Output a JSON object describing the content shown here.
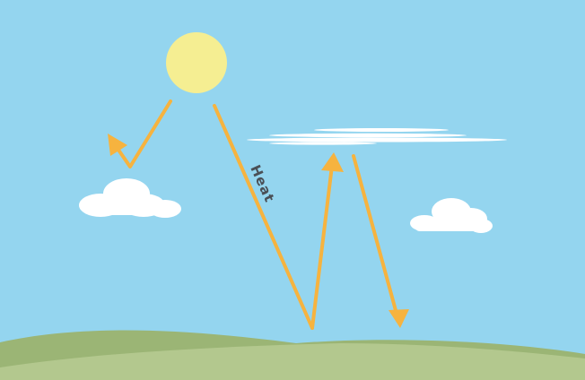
{
  "labels": {
    "heat": "Heat"
  },
  "colors": {
    "sky": "#94d5ef",
    "sun": "#f5ee92",
    "arrow": "#f6b33f",
    "cloud": "#ffffff",
    "hill_back": "#9bb575",
    "hill_front": "#b3c88e",
    "label": "#4a4f56"
  }
}
